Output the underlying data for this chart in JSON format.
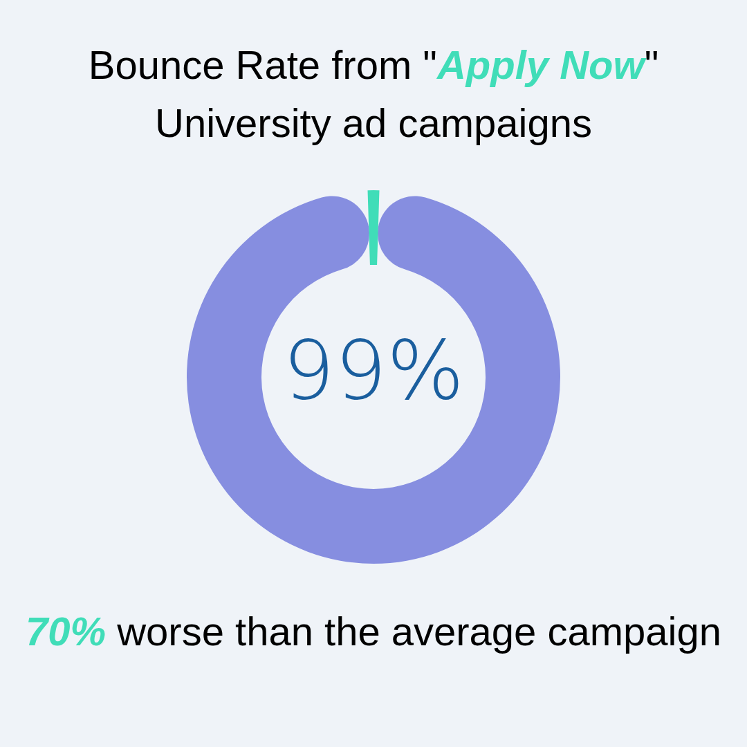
{
  "chart_data": {
    "type": "donut",
    "title": "Bounce Rate from \"Apply Now\" University ad campaigns",
    "categories": [
      null,
      null
    ],
    "values": [
      99,
      1
    ],
    "colors": [
      "#868ee0",
      "#40ddb8"
    ],
    "value_labels": [
      "99%",
      null
    ],
    "legend": false,
    "annotations": [
      "70% worse than the average campaign"
    ]
  }
}
